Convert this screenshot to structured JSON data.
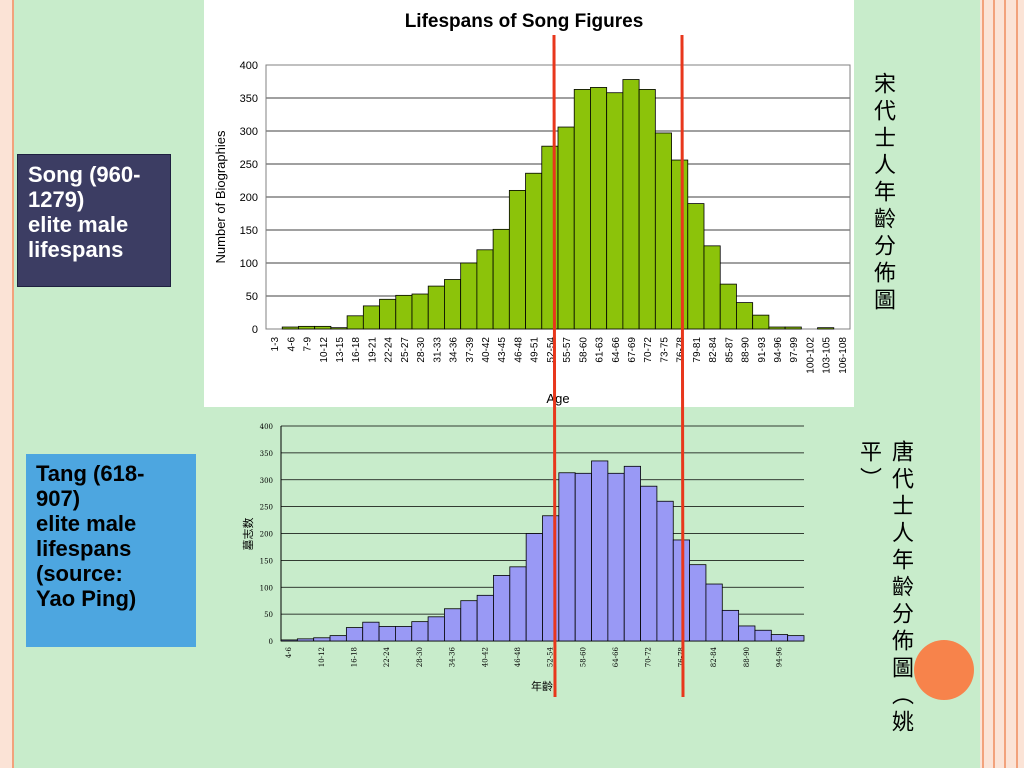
{
  "slide": {
    "song_label_lines": [
      "Song (960-",
      "1279)",
      "elite male",
      "lifespans"
    ],
    "tang_label_lines": [
      "Tang (618-",
      "907)",
      "elite male",
      "lifespans",
      "(source:",
      "Yao Ping)"
    ],
    "song_side_text": "宋代士人年齡分佈圖",
    "tang_side_text": "唐代士人年齡分佈圖（姚平）",
    "colors": {
      "background": "#c8eccb",
      "song_bar": "#8cc30a",
      "tang_bar": "#9999f5",
      "marker_line": "#e8371c",
      "song_box": "#3c3d63",
      "tang_box": "#4da6e0",
      "accent_circle": "#f7834b"
    }
  },
  "chart_data": [
    {
      "type": "bar",
      "title": "Lifespans of Song Figures",
      "xlabel": "Age",
      "ylabel": "Number of Biographies",
      "ylim": [
        0,
        400
      ],
      "yticks": [
        0,
        50,
        100,
        150,
        200,
        250,
        300,
        350,
        400
      ],
      "grid": true,
      "categories": [
        "1-3",
        "4-6",
        "7-9",
        "10-12",
        "13-15",
        "16-18",
        "19-21",
        "22-24",
        "25-27",
        "28-30",
        "31-33",
        "34-36",
        "37-39",
        "40-42",
        "43-45",
        "46-48",
        "49-51",
        "52-54",
        "55-57",
        "58-60",
        "61-63",
        "64-66",
        "67-69",
        "70-72",
        "73-75",
        "76-78",
        "79-81",
        "82-84",
        "85-87",
        "88-90",
        "91-93",
        "94-96",
        "97-99",
        "100-102",
        "103-105",
        "106-108"
      ],
      "values": [
        0,
        3,
        4,
        4,
        2,
        20,
        35,
        45,
        51,
        53,
        65,
        75,
        100,
        120,
        151,
        210,
        236,
        277,
        306,
        363,
        366,
        358,
        378,
        363,
        297,
        256,
        190,
        126,
        68,
        40,
        21,
        3,
        3,
        0,
        2,
        0
      ]
    },
    {
      "type": "bar",
      "title": "",
      "xlabel": "年齡",
      "ylabel": "墓志数",
      "ylim": [
        0,
        400
      ],
      "yticks": [
        0,
        50,
        100,
        150,
        200,
        250,
        300,
        350,
        400
      ],
      "grid": true,
      "categories": [
        "4-6",
        "7-9",
        "10-12",
        "13-15",
        "16-18",
        "19-21",
        "22-24",
        "25-27",
        "28-30",
        "31-33",
        "34-36",
        "37-39",
        "40-42",
        "43-45",
        "46-48",
        "49-51",
        "52-54",
        "55-57",
        "58-60",
        "61-63",
        "64-66",
        "67-69",
        "70-72",
        "73-75",
        "76-78",
        "79-81",
        "82-84",
        "85-87",
        "88-90",
        "91-93",
        "94-96",
        "97-99"
      ],
      "shown_ticks": [
        "4-6",
        "10-12",
        "16-18",
        "22-24",
        "28-30",
        "34-36",
        "40-42",
        "46-48",
        "52-54",
        "58-60",
        "64-66",
        "70-72",
        "76-78",
        "82-84",
        "88-90",
        "94-96"
      ],
      "values": [
        2,
        4,
        6,
        10,
        25,
        35,
        27,
        27,
        36,
        45,
        60,
        75,
        85,
        122,
        138,
        200,
        233,
        313,
        312,
        335,
        312,
        325,
        288,
        260,
        188,
        142,
        106,
        57,
        28,
        20,
        12,
        10
      ]
    }
  ]
}
